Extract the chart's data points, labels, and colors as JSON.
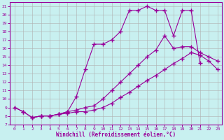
{
  "xlabel": "Windchill (Refroidissement éolien,°C)",
  "bg_color": "#c8f0f0",
  "line_color": "#990099",
  "grid_color": "#b0b0b0",
  "xlim": [
    -0.5,
    23.5
  ],
  "ylim": [
    7,
    21.5
  ],
  "xticks": [
    0,
    1,
    2,
    3,
    4,
    5,
    6,
    7,
    8,
    9,
    10,
    11,
    12,
    13,
    14,
    15,
    16,
    17,
    18,
    19,
    20,
    21,
    22,
    23
  ],
  "yticks": [
    7,
    8,
    9,
    10,
    11,
    12,
    13,
    14,
    15,
    16,
    17,
    18,
    19,
    20,
    21
  ],
  "line1_x": [
    0,
    1,
    2,
    3,
    4,
    5,
    6,
    7,
    8,
    9,
    10,
    11,
    12,
    13,
    14,
    15,
    16,
    17,
    18,
    19,
    20,
    21
  ],
  "line1_y": [
    9.0,
    8.5,
    7.8,
    8.0,
    8.0,
    8.2,
    8.5,
    10.3,
    13.5,
    16.5,
    16.5,
    17.0,
    18.0,
    20.5,
    20.5,
    21.0,
    20.5,
    20.5,
    17.5,
    20.5,
    20.5,
    14.3
  ],
  "line2_x": [
    0,
    1,
    2,
    3,
    4,
    5,
    6,
    7,
    8,
    9,
    10,
    11,
    12,
    13,
    14,
    15,
    16,
    17,
    18,
    19,
    20,
    21,
    22,
    23
  ],
  "line2_y": [
    9.0,
    8.5,
    7.8,
    8.0,
    8.0,
    8.2,
    8.5,
    8.7,
    9.0,
    9.2,
    10.0,
    11.0,
    12.0,
    13.0,
    14.0,
    15.0,
    15.8,
    17.5,
    16.0,
    16.2,
    16.2,
    15.5,
    15.0,
    14.5
  ],
  "line3_x": [
    2,
    3,
    4,
    5,
    6,
    7,
    8,
    9,
    10,
    11,
    12,
    13,
    14,
    15,
    16,
    17,
    18,
    19,
    20,
    21,
    22,
    23
  ],
  "line3_y": [
    7.8,
    8.0,
    8.0,
    8.2,
    8.3,
    8.5,
    8.5,
    8.7,
    9.0,
    9.5,
    10.2,
    10.8,
    11.5,
    12.2,
    12.8,
    13.5,
    14.2,
    14.8,
    15.5,
    15.2,
    14.5,
    13.5
  ]
}
